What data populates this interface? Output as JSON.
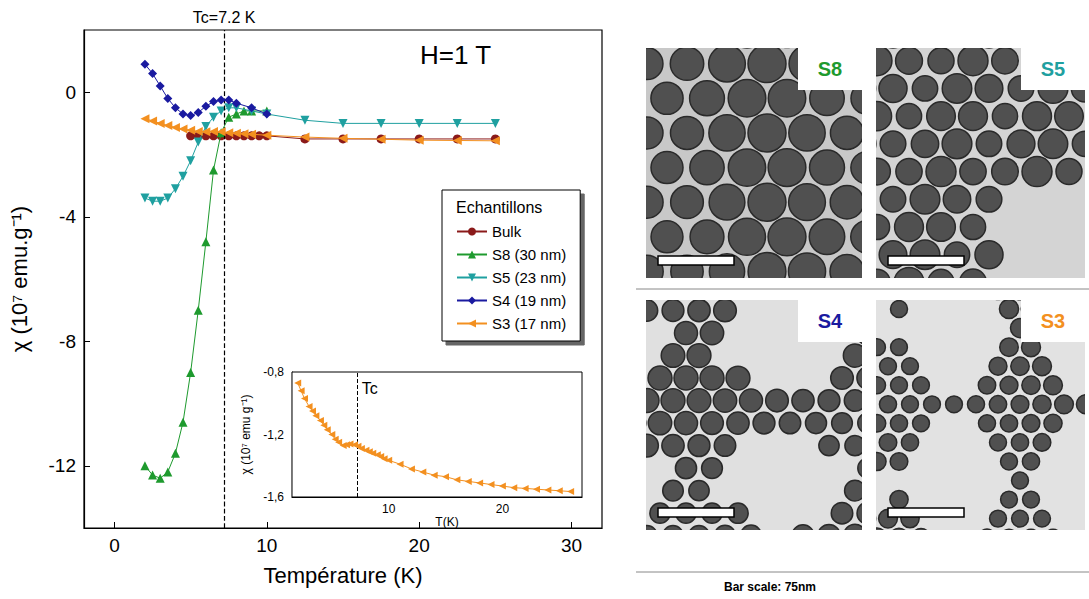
{
  "chart_data": [
    {
      "type": "line",
      "x_label": "Température (K)",
      "y_label": "χ (10⁷ emu.g⁻¹)",
      "xlim": [
        -2,
        32
      ],
      "xticks": [
        0,
        10,
        20,
        30
      ],
      "ylim": [
        -14,
        2
      ],
      "yticks": [
        -12,
        -8,
        -4,
        0
      ],
      "grid": false,
      "legend": "right",
      "legend_title": "Echantillons",
      "annotations": [
        {
          "text": "Tc=7.2 K",
          "x": 7.2,
          "line_style": "dashed"
        },
        {
          "text": "H=1 T"
        }
      ],
      "series": [
        {
          "name": "Bulk",
          "color": "#8b1a1a",
          "marker": "circle",
          "x": [
            5,
            5.5,
            6,
            6.5,
            7,
            7.5,
            8,
            8.5,
            9,
            9.5,
            10,
            12.5,
            15,
            17.5,
            20,
            22.5,
            25
          ],
          "values": [
            -1.4,
            -1.4,
            -1.4,
            -1.4,
            -1.4,
            -1.4,
            -1.4,
            -1.4,
            -1.4,
            -1.4,
            -1.4,
            -1.5,
            -1.5,
            -1.5,
            -1.5,
            -1.5,
            -1.5
          ]
        },
        {
          "name": "S8 (30 nm)",
          "color": "#1e9a2e",
          "marker": "triangle-up",
          "x": [
            2,
            2.5,
            3,
            3.5,
            4,
            4.5,
            5,
            5.5,
            6,
            6.5,
            7,
            7.5,
            8,
            8.5,
            9,
            10
          ],
          "values": [
            -12,
            -12.3,
            -12.4,
            -12.2,
            -11.6,
            -10.6,
            -9,
            -7,
            -4.8,
            -2.5,
            -1.3,
            -0.8,
            -0.7,
            -0.6,
            -0.6,
            -0.6
          ]
        },
        {
          "name": "S5 (23 nm)",
          "color": "#1fa0a0",
          "marker": "triangle-down",
          "x": [
            2,
            2.5,
            3,
            3.5,
            4,
            4.5,
            5,
            5.5,
            6,
            6.5,
            7,
            7.5,
            8,
            9,
            10,
            12.5,
            15,
            17.5,
            20,
            22.5,
            25
          ],
          "values": [
            -3.4,
            -3.5,
            -3.5,
            -3.4,
            -3.1,
            -2.7,
            -2.2,
            -1.6,
            -1.1,
            -0.8,
            -0.6,
            -0.5,
            -0.5,
            -0.6,
            -0.7,
            -0.9,
            -1.0,
            -1.0,
            -1.0,
            -1.0,
            -1.0
          ]
        },
        {
          "name": "S4 (19 nm)",
          "color": "#1a1aa0",
          "marker": "diamond",
          "x": [
            2,
            2.5,
            3,
            3.5,
            4,
            4.5,
            5,
            5.5,
            6,
            6.5,
            7,
            7.5,
            8,
            9,
            10
          ],
          "values": [
            0.9,
            0.6,
            0.2,
            -0.2,
            -0.5,
            -0.7,
            -0.75,
            -0.65,
            -0.45,
            -0.3,
            -0.25,
            -0.25,
            -0.35,
            -0.5,
            -0.7
          ]
        },
        {
          "name": "S3 (17 nm)",
          "color": "#f39020",
          "marker": "triangle-left",
          "x": [
            2,
            2.5,
            3,
            3.5,
            4,
            4.5,
            5,
            5.5,
            6,
            6.5,
            7,
            7.5,
            8,
            8.5,
            9,
            10,
            12.5,
            15,
            17.5,
            20,
            22.5,
            25
          ],
          "values": [
            -0.85,
            -0.92,
            -1.0,
            -1.07,
            -1.13,
            -1.18,
            -1.22,
            -1.26,
            -1.27,
            -1.26,
            -1.27,
            -1.3,
            -1.32,
            -1.33,
            -1.35,
            -1.38,
            -1.44,
            -1.48,
            -1.51,
            -1.54,
            -1.55,
            -1.56
          ]
        }
      ]
    },
    {
      "type": "line",
      "x_label": "T(K)",
      "y_label": "χ (10⁷ emu g⁻¹)",
      "xlim": [
        1.5,
        27
      ],
      "xticks": [
        10,
        20
      ],
      "ylim": [
        -1.6,
        -0.8
      ],
      "yticks": [
        {
          "value": -1.6,
          "label": "-1,6"
        },
        {
          "value": -1.2,
          "label": "-1,2"
        },
        {
          "value": -0.8,
          "label": "-0,8"
        }
      ],
      "grid": false,
      "annotations": [
        {
          "text": "Tc",
          "x": 7.2,
          "line_style": "dashed"
        }
      ],
      "series": [
        {
          "color": "#f39020",
          "marker": "triangle-left",
          "x": [
            2,
            2.3,
            2.6,
            3,
            3.3,
            3.6,
            4,
            4.3,
            4.6,
            5,
            5.3,
            5.6,
            6,
            6.3,
            6.6,
            7,
            7.3,
            7.6,
            8,
            8.3,
            8.6,
            9,
            9.3,
            9.6,
            10,
            11,
            12,
            13,
            14,
            15,
            16,
            17,
            18,
            19,
            20,
            21,
            22,
            23,
            24,
            25,
            26
          ],
          "values": [
            -0.87,
            -0.92,
            -0.97,
            -1.02,
            -1.05,
            -1.08,
            -1.11,
            -1.14,
            -1.17,
            -1.2,
            -1.23,
            -1.25,
            -1.27,
            -1.265,
            -1.26,
            -1.265,
            -1.275,
            -1.29,
            -1.3,
            -1.31,
            -1.32,
            -1.33,
            -1.34,
            -1.355,
            -1.365,
            -1.39,
            -1.42,
            -1.44,
            -1.46,
            -1.47,
            -1.49,
            -1.5,
            -1.51,
            -1.52,
            -1.53,
            -1.54,
            -1.545,
            -1.55,
            -1.555,
            -1.56,
            -1.565
          ]
        }
      ]
    }
  ],
  "micrographs": {
    "panels": [
      {
        "label": "S8",
        "color": "#1e9a2e"
      },
      {
        "label": "S5",
        "color": "#1fa0a0"
      },
      {
        "label": "S4",
        "color": "#1a1aa0"
      },
      {
        "label": "S3",
        "color": "#f39020"
      }
    ],
    "caption": "Bar scale: 75nm"
  }
}
